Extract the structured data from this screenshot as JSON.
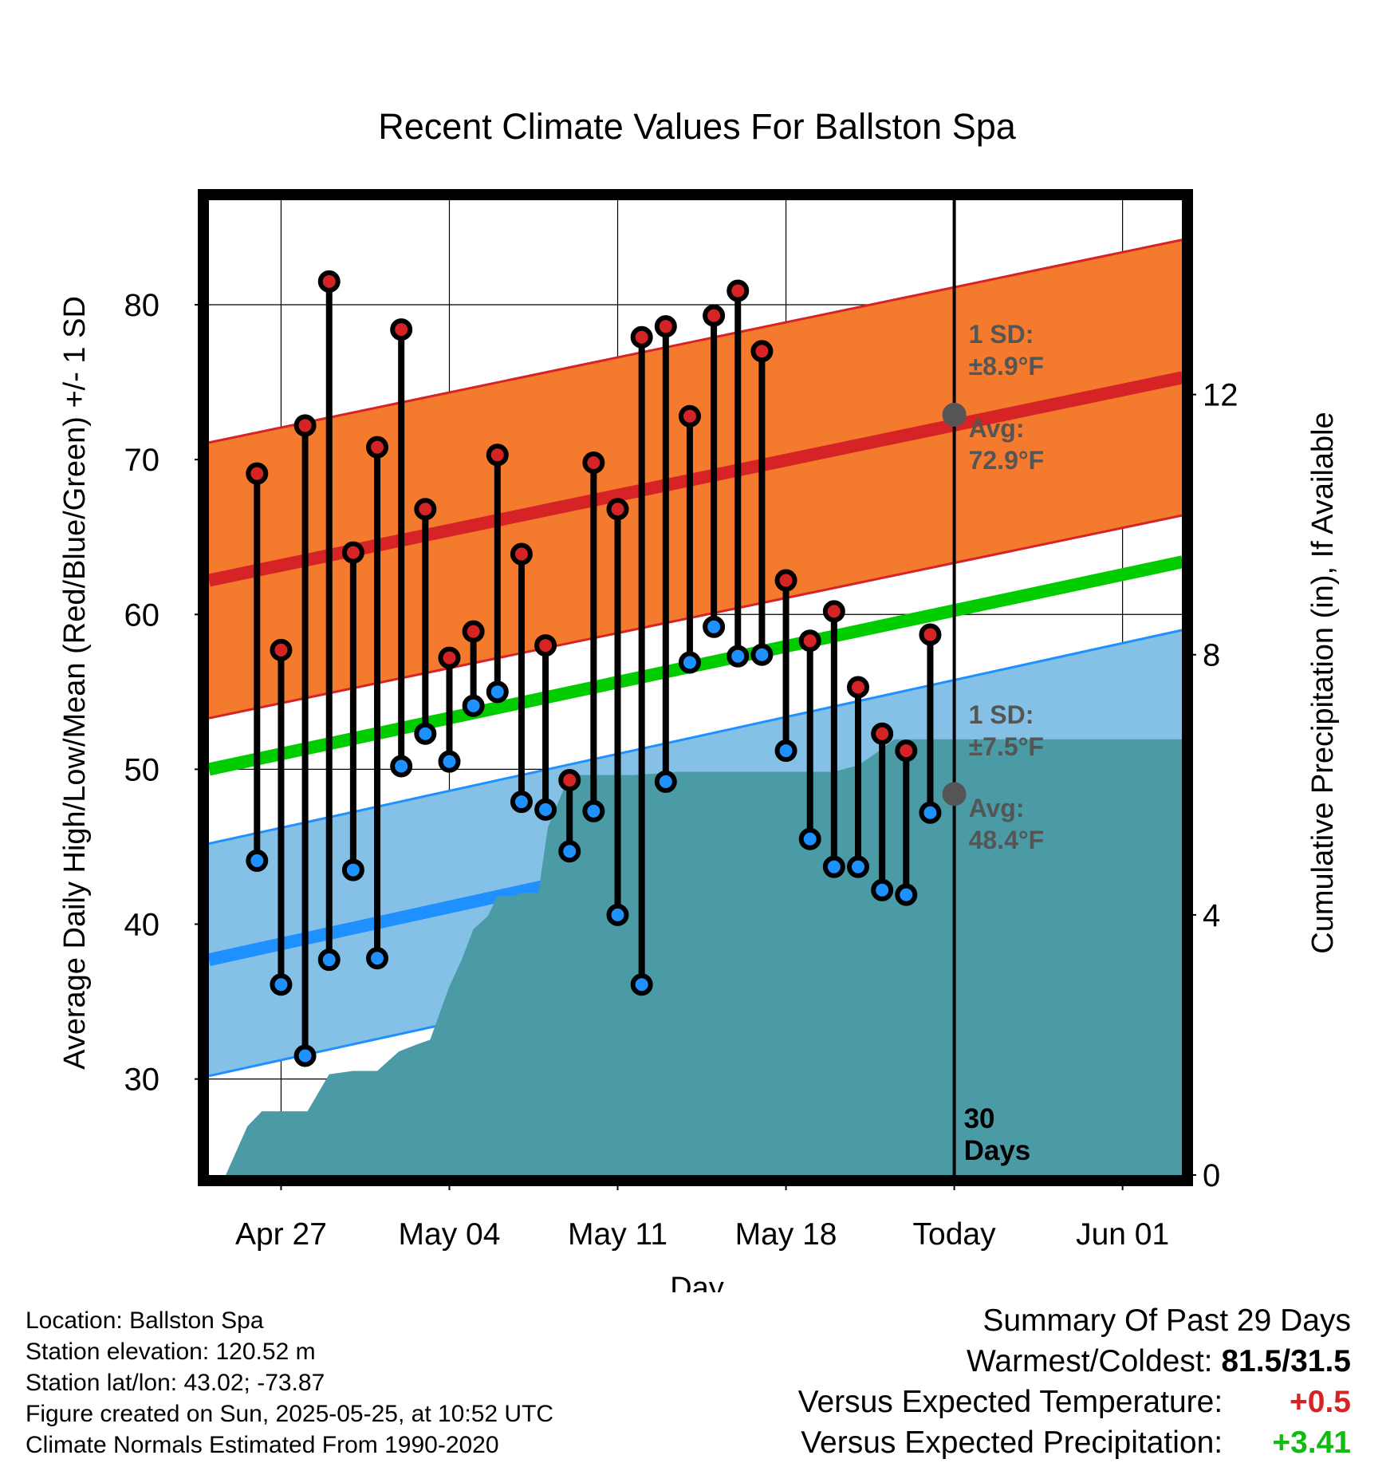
{
  "title": "Recent Climate Values For Ballston Spa",
  "xlabel": "Day",
  "ylabel_left": "Average Daily High/Low/Mean (Red/Blue/Green) +/- 1 SD",
  "ylabel_right": "Cumulative Precipitation (in), If Available",
  "annotations": {
    "high_sd": [
      "1 SD:",
      "±8.9°F"
    ],
    "high_avg": [
      "Avg:",
      "72.9°F"
    ],
    "low_sd": [
      "1 SD:",
      "±7.5°F"
    ],
    "low_avg": [
      "Avg:",
      "48.4°F"
    ],
    "days": [
      "30",
      "Days"
    ]
  },
  "info": {
    "location": "Location: Ballston Spa",
    "elevation": "Station elevation: 120.52 m",
    "latlon": "Station lat/lon: 43.02; -73.87",
    "created": "Figure created on Sun, 2025-05-25, at 10:52 UTC",
    "normals": "Climate Normals Estimated From 1990-2020"
  },
  "summary": {
    "heading": "Summary Of Past 29 Days",
    "warmest_label": "Warmest/Coldest:",
    "warmest_value": "81.5/31.5",
    "temp_label": "Versus Expected Temperature:",
    "temp_value": "+0.5",
    "precip_label": "Versus Expected Precipitation:",
    "precip_value": "+3.41"
  },
  "colors": {
    "high_band": "#f47a2e",
    "high_line": "#d62426",
    "low_band": "#85c1e6",
    "low_line": "#1e90ff",
    "mean_line": "#00cc00",
    "precip": "#4a9ba5",
    "high_dot": "#d62426",
    "low_dot": "#1e90ff",
    "annotation": "#555555",
    "temp_value": "#d62426",
    "precip_value": "#11bb11"
  },
  "chart_data": {
    "type": "line",
    "x_ticks": [
      "Apr 27",
      "May 04",
      "May 11",
      "May 18",
      "Today",
      "Jun 01"
    ],
    "x_tick_days": [
      2,
      9,
      16,
      23,
      30,
      37
    ],
    "x_range_days": [
      -1,
      39.5
    ],
    "y_left": {
      "ticks": [
        30,
        40,
        50,
        60,
        70,
        80
      ],
      "range": [
        23.8,
        86.8
      ]
    },
    "y_right": {
      "ticks": [
        0,
        4,
        8,
        12
      ],
      "range": [
        0,
        15.0
      ]
    },
    "daily": {
      "days": [
        1,
        2,
        3,
        4,
        5,
        6,
        7,
        8,
        9,
        10,
        11,
        12,
        13,
        14,
        15,
        16,
        17,
        18,
        19,
        20,
        21,
        22,
        23,
        24,
        25,
        26,
        27,
        28,
        29
      ],
      "high": [
        69.1,
        57.7,
        72.2,
        81.5,
        64.0,
        70.8,
        78.4,
        66.8,
        57.2,
        58.9,
        70.3,
        63.9,
        58.0,
        49.3,
        69.8,
        66.8,
        77.9,
        78.6,
        72.8,
        79.3,
        80.9,
        77.0,
        62.2,
        58.3,
        60.2,
        55.3,
        52.3,
        51.2,
        58.7
      ],
      "low": [
        44.1,
        36.1,
        31.5,
        37.7,
        43.5,
        37.8,
        50.2,
        52.3,
        50.5,
        54.1,
        55.0,
        47.9,
        47.4,
        44.7,
        47.3,
        40.6,
        36.1,
        49.2,
        56.9,
        59.2,
        57.3,
        57.4,
        51.2,
        45.5,
        43.7,
        43.7,
        42.2,
        41.9,
        47.2
      ]
    },
    "normals": {
      "days": [
        -1,
        39.5
      ],
      "high_avg": [
        62.2,
        75.3
      ],
      "high_sd": 8.9,
      "low_avg": [
        37.7,
        51.5
      ],
      "low_sd": 7.5,
      "mean_avg": [
        50.0,
        63.4
      ]
    },
    "normals_today": {
      "day": 30,
      "high_avg": 72.9,
      "low_avg": 48.4
    },
    "precip": {
      "days": [
        -1,
        -0.3,
        0.6,
        1.2,
        2.2,
        3.1,
        4.0,
        5.0,
        6.0,
        6.9,
        7.6,
        8.2,
        9.0,
        9.5,
        10.0,
        10.6,
        11.0,
        11.6,
        12.1,
        12.7,
        13.1,
        14.0,
        14.3,
        15.0,
        15.9,
        16.6,
        17.5,
        18.5,
        20.0,
        21.0,
        22.0,
        23.0,
        24.0,
        25.0,
        26.0,
        26.8,
        27.5,
        28.0,
        29.0,
        30.0,
        39.5
      ],
      "cumulative": [
        0.0,
        0.0,
        0.75,
        0.98,
        0.98,
        0.98,
        1.55,
        1.6,
        1.6,
        1.9,
        2.0,
        2.08,
        2.9,
        3.3,
        3.78,
        3.98,
        4.29,
        4.29,
        4.34,
        4.34,
        5.35,
        6.15,
        6.15,
        6.15,
        6.15,
        6.15,
        6.17,
        6.2,
        6.2,
        6.2,
        6.2,
        6.2,
        6.2,
        6.2,
        6.3,
        6.5,
        6.7,
        6.7,
        6.7,
        6.7,
        6.7
      ]
    }
  }
}
